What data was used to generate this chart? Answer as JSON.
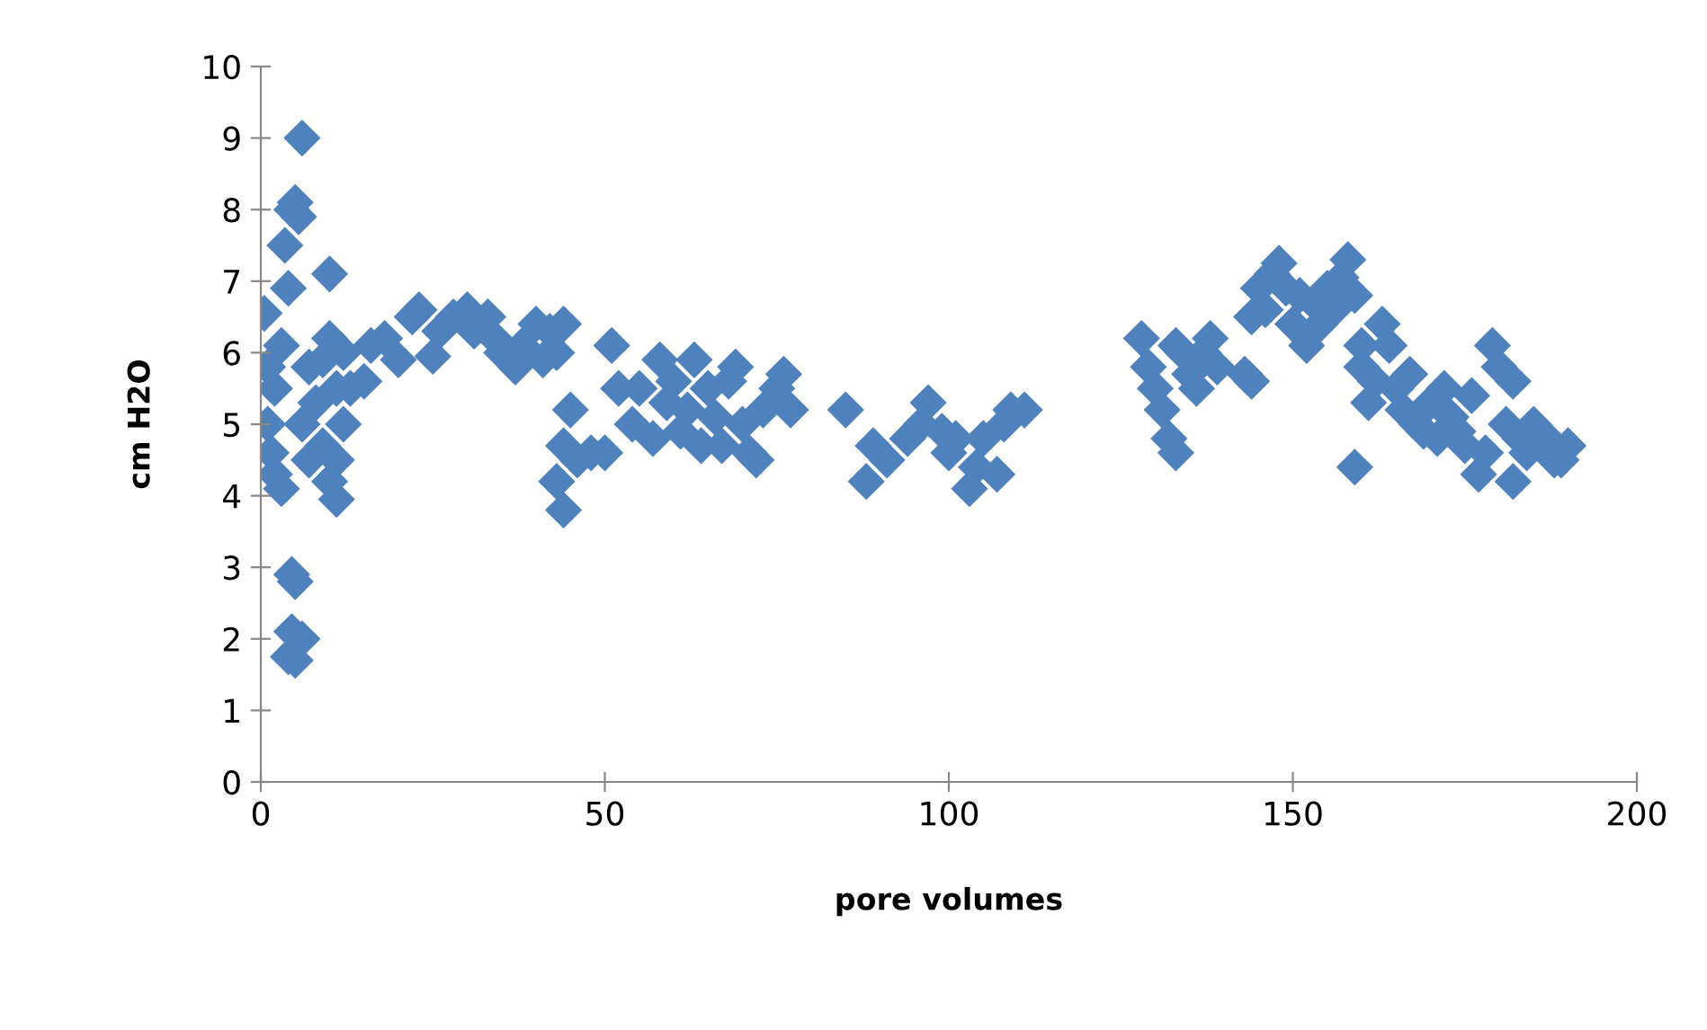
{
  "chart_data": {
    "type": "scatter",
    "xlabel": "pore volumes",
    "ylabel": "cm H2O",
    "xlim": [
      0,
      200
    ],
    "ylim": [
      0,
      10
    ],
    "xticks": [
      0,
      50,
      100,
      150,
      200
    ],
    "yticks": [
      0,
      1,
      2,
      3,
      4,
      5,
      6,
      7,
      8,
      9,
      10
    ],
    "grid": false,
    "legend": false,
    "marker": "diamond",
    "series": [
      {
        "color": "#4f81bd",
        "x": [
          0.5,
          1,
          1,
          1.5,
          2,
          2,
          3,
          3,
          3.5,
          4,
          4.5,
          5,
          5.5,
          6,
          4.5,
          5,
          4.5,
          4,
          5,
          6,
          6,
          7,
          7,
          8,
          9,
          9,
          10,
          10,
          10,
          11,
          11,
          11,
          12,
          12,
          13,
          15,
          16,
          18,
          20,
          22,
          23,
          25,
          26,
          28,
          30,
          31,
          33,
          34,
          35,
          37,
          38,
          40,
          41,
          42,
          43,
          44,
          43,
          44,
          44,
          45,
          46,
          48,
          50,
          51,
          52,
          54,
          55,
          57,
          58,
          59,
          60,
          61,
          62,
          63,
          64,
          65,
          66,
          67,
          68,
          69,
          70,
          71,
          72,
          73,
          75,
          76,
          77,
          85,
          88,
          89,
          91,
          94,
          96,
          97,
          99,
          100,
          101,
          103,
          104,
          105,
          107,
          108,
          109,
          111,
          128,
          129,
          130,
          131,
          132,
          133,
          133,
          134,
          135,
          136,
          137,
          138,
          139,
          143,
          144,
          144,
          145,
          146,
          147,
          148,
          149,
          150,
          151,
          152,
          153,
          154,
          155,
          156,
          157,
          158,
          159,
          159,
          160,
          160,
          161,
          162,
          163,
          164,
          165,
          166,
          167,
          168,
          169,
          170,
          171,
          172,
          173,
          174,
          175,
          176,
          177,
          178,
          179,
          180,
          181,
          182,
          182,
          183,
          184,
          185,
          187,
          188,
          189,
          190
        ],
        "values": [
          6.55,
          5.8,
          5.0,
          4.6,
          4.3,
          5.5,
          4.1,
          6.1,
          7.5,
          6.9,
          8.0,
          8.1,
          7.9,
          9.0,
          2.9,
          2.8,
          2.1,
          1.75,
          1.7,
          2.0,
          5.0,
          4.5,
          5.8,
          5.3,
          4.7,
          5.9,
          7.1,
          6.2,
          4.2,
          4.5,
          3.95,
          5.5,
          5.0,
          6.0,
          5.5,
          5.6,
          6.1,
          6.2,
          5.9,
          6.5,
          6.6,
          5.95,
          6.3,
          6.5,
          6.6,
          6.3,
          6.5,
          6.2,
          6.0,
          5.8,
          6.1,
          6.4,
          5.9,
          6.3,
          6.0,
          6.4,
          4.2,
          3.8,
          4.7,
          5.2,
          4.5,
          4.6,
          4.6,
          6.1,
          5.5,
          5.0,
          5.5,
          4.8,
          5.9,
          5.3,
          5.6,
          4.9,
          5.2,
          5.9,
          4.7,
          5.5,
          5.1,
          4.7,
          5.6,
          5.8,
          5.0,
          4.6,
          4.5,
          5.2,
          5.5,
          5.7,
          5.2,
          5.2,
          4.2,
          4.7,
          4.5,
          4.8,
          5.0,
          5.3,
          4.9,
          4.6,
          4.8,
          4.1,
          4.4,
          4.8,
          4.3,
          5.0,
          5.2,
          5.2,
          6.2,
          5.8,
          5.5,
          5.2,
          4.8,
          4.6,
          6.1,
          6.0,
          5.7,
          5.5,
          6.0,
          6.2,
          5.8,
          5.7,
          5.6,
          6.5,
          6.9,
          6.6,
          7.1,
          7.25,
          6.9,
          6.4,
          6.8,
          6.1,
          6.7,
          6.4,
          6.9,
          6.6,
          7.05,
          7.3,
          6.8,
          4.4,
          5.8,
          6.1,
          5.3,
          5.6,
          6.4,
          6.1,
          5.5,
          5.2,
          5.7,
          5.0,
          4.9,
          5.3,
          4.8,
          5.5,
          5.1,
          4.9,
          4.7,
          5.4,
          4.3,
          4.6,
          6.1,
          5.8,
          5.0,
          4.2,
          5.6,
          4.8,
          4.6,
          5.0,
          4.8,
          4.5,
          4.5,
          4.7
        ]
      }
    ]
  }
}
